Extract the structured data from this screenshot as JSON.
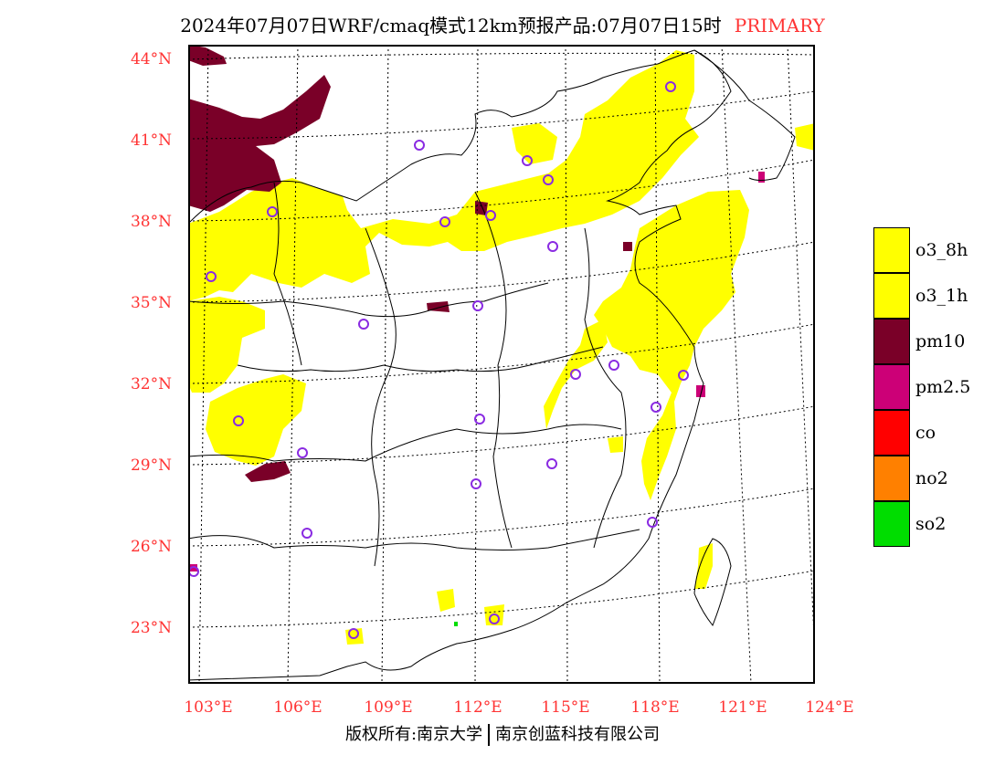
{
  "title": {
    "main": "2024年07月07日WRF/cmaq模式12km预报产品:07月07日15时",
    "tag": "PRIMARY"
  },
  "lat_labels": [
    "44°N",
    "41°N",
    "38°N",
    "35°N",
    "32°N",
    "29°N",
    "26°N",
    "23°N"
  ],
  "lon_labels": [
    "103°E",
    "106°E",
    "109°E",
    "112°E",
    "115°E",
    "118°E",
    "121°E",
    "124°E"
  ],
  "legend": [
    {
      "label": "o3_8h",
      "color": "#ffff00"
    },
    {
      "label": "o3_1h",
      "color": "#ffff00"
    },
    {
      "label": "pm10",
      "color": "#7a0028"
    },
    {
      "label": "pm2.5",
      "color": "#cc0077"
    },
    {
      "label": "co",
      "color": "#ff0000"
    },
    {
      "label": "no2",
      "color": "#ff8000"
    },
    {
      "label": "so2",
      "color": "#00dd00"
    }
  ],
  "footer": {
    "left": "版权所有:南京大学",
    "right": "南京创蓝科技有限公司"
  },
  "colors": {
    "o3": "#ffff00",
    "pm10": "#7a0028",
    "pm25": "#cc0077",
    "station": "#8a2be2",
    "label_red": "#ff3333"
  }
}
